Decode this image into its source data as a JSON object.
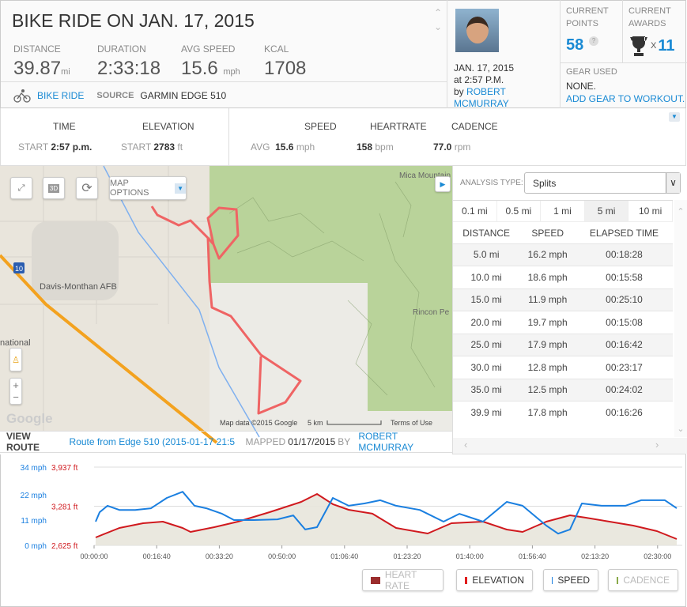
{
  "header": {
    "title": "BIKE RIDE ON JAN. 17, 2015",
    "stats": [
      {
        "label": "DISTANCE",
        "value": "39.87",
        "unit": "mi"
      },
      {
        "label": "DURATION",
        "value": "2:33:18",
        "unit": ""
      },
      {
        "label": "AVG SPEED",
        "value": "15.6",
        "unit": "mph"
      },
      {
        "label": "KCAL",
        "value": "1708",
        "unit": ""
      }
    ],
    "activity_type": "BIKE RIDE",
    "source_label": "SOURCE",
    "source": "GARMIN EDGE 510"
  },
  "profile": {
    "date": "JAN. 17, 2015",
    "time": "at 2:57 P.M.",
    "by": "by",
    "user": "ROBERT MCMURRAY"
  },
  "points": {
    "points_label1": "CURRENT",
    "points_label2": "POINTS",
    "points": "58",
    "help": "?",
    "awards_label1": "CURRENT",
    "awards_label2": "AWARDS",
    "awards_x": "X",
    "awards": "11",
    "gear_label": "GEAR USED",
    "gear": "NONE.",
    "add_gear": "ADD GEAR TO WORKOUT."
  },
  "summary": {
    "time_h": "TIME",
    "elev_h": "ELEVATION",
    "start": "START",
    "start_time": "2:57 p.m.",
    "start_elev": "2783",
    "ft": "ft",
    "speed_h": "SPEED",
    "hr_h": "HEARTRATE",
    "cad_h": "CADENCE",
    "avg": "AVG",
    "speed": "15.6",
    "mph": "mph",
    "hr": "158",
    "bpm": "bpm",
    "cad": "77.0",
    "rpm": "rpm"
  },
  "map": {
    "options": "MAP OPTIONS",
    "btn_3d": "3D",
    "labels": {
      "afb": "Davis-Monthan AFB",
      "intl": "national",
      "mica": "Mica Mountain",
      "rincon": "Rincon Pe",
      "i10": "10"
    },
    "attribution": "Map data ©2015 Google",
    "scale": "5 km",
    "terms": "Terms of Use",
    "google": "Google"
  },
  "route": {
    "view_label": "VIEW ROUTE",
    "route_name": "Route from Edge 510 (2015-01-17 21:5",
    "mapped_label": "MAPPED",
    "mapped_date": "01/17/2015",
    "by": "BY",
    "user": "ROBERT MCMURRAY"
  },
  "analysis": {
    "label": "ANALYSIS TYPE:",
    "selected": "Splits",
    "tabs": [
      "0.1 mi",
      "0.5 mi",
      "1 mi",
      "5 mi",
      "10 mi"
    ],
    "active_tab": "5 mi",
    "columns": [
      "DISTANCE",
      "SPEED",
      "ELAPSED TIME"
    ],
    "rows": [
      [
        "5.0 mi",
        "16.2 mph",
        "00:18:28"
      ],
      [
        "10.0 mi",
        "18.6 mph",
        "00:15:58"
      ],
      [
        "15.0 mi",
        "11.9 mph",
        "00:25:10"
      ],
      [
        "20.0 mi",
        "19.7 mph",
        "00:15:08"
      ],
      [
        "25.0 mi",
        "17.9 mph",
        "00:16:42"
      ],
      [
        "30.0 mi",
        "12.8 mph",
        "00:23:17"
      ],
      [
        "35.0 mi",
        "12.5 mph",
        "00:24:02"
      ],
      [
        "39.9 mi",
        "17.8 mph",
        "00:16:26"
      ]
    ]
  },
  "chart_data": {
    "type": "line",
    "speed_axis": {
      "ticks": [
        "34 mph",
        "22 mph",
        "11 mph",
        "0 mph"
      ],
      "values": [
        34,
        22,
        11,
        0
      ],
      "color": "#1a7fe0"
    },
    "elev_axis": {
      "ticks": [
        "3,937 ft",
        "3,281 ft",
        "2,625 ft"
      ],
      "values": [
        3937,
        3281,
        2625
      ],
      "color": "#d0191e"
    },
    "xlim": [
      0,
      9300
    ],
    "x_ticks": [
      "00:00:00",
      "00:16:40",
      "00:33:20",
      "00:50:00",
      "01:06:40",
      "01:23:20",
      "01:40:00",
      "01:56:40",
      "02:13:20",
      "02:30:00"
    ],
    "series": [
      {
        "name": "SPEED",
        "color": "#1a7fe0",
        "t": [
          25,
          88,
          215,
          404,
          657,
          909,
          1162,
          1414,
          1604,
          1793,
          2045,
          2235,
          2551,
          2929,
          3182,
          3371,
          3561,
          3813,
          4066,
          4318,
          4571,
          4823,
          5202,
          5581,
          5833,
          6212,
          6591,
          6843,
          7222,
          7412,
          7601,
          7790,
          8106,
          8485,
          8737,
          9116,
          9306
        ],
        "values": [
          10.3,
          14.4,
          17.2,
          15.4,
          15.4,
          16.1,
          20.6,
          23.3,
          17.2,
          16.1,
          13.7,
          11,
          11,
          11.3,
          13,
          6.9,
          7.9,
          20.6,
          17.2,
          18.2,
          19.6,
          17.2,
          15.4,
          10.3,
          13.7,
          10.3,
          18.9,
          17.2,
          8.6,
          5.1,
          6.9,
          18.2,
          17.2,
          17.2,
          19.6,
          19.6,
          16.1
        ]
      },
      {
        "name": "ELEVATION",
        "color": "#d0191e",
        "t": [
          25,
          404,
          783,
          1098,
          1414,
          1540,
          1919,
          2298,
          2803,
          3308,
          3561,
          3813,
          4066,
          4444,
          4823,
          5328,
          5707,
          6212,
          6591,
          6843,
          7222,
          7601,
          7854,
          8232,
          8611,
          8990,
          9306
        ],
        "values": [
          2758,
          2917,
          2996,
          3023,
          2917,
          2850,
          2930,
          3023,
          3182,
          3354,
          3487,
          3315,
          3222,
          3156,
          2917,
          2824,
          2996,
          3023,
          2890,
          2850,
          3023,
          3129,
          3089,
          3023,
          2956,
          2863,
          2731
        ]
      }
    ],
    "legend": [
      {
        "name": "HEART RATE",
        "color": "#9b2d2d",
        "active": false
      },
      {
        "name": "ELEVATION",
        "color": "#e01b1b",
        "active": true
      },
      {
        "name": "SPEED",
        "color": "#1a7fe0",
        "active": true
      },
      {
        "name": "CADENCE",
        "color": "#8aaa4a",
        "active": false
      }
    ]
  }
}
